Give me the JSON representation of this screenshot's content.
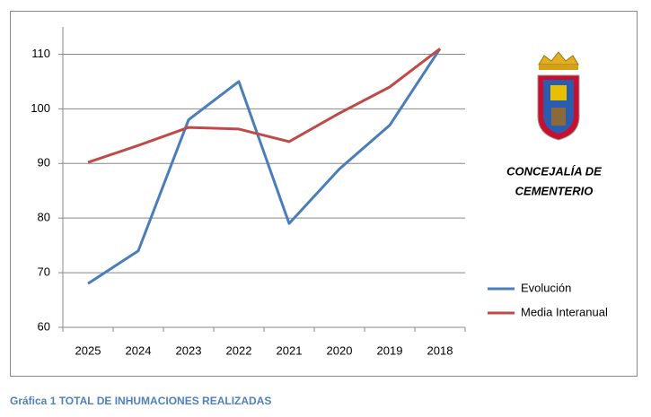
{
  "chart_data": {
    "type": "line",
    "categories": [
      "2025",
      "2024",
      "2023",
      "2022",
      "2021",
      "2020",
      "2019",
      "2018"
    ],
    "series": [
      {
        "name": "Evolución",
        "color": "#4a7ebb",
        "values": [
          68,
          74,
          98,
          105,
          79,
          89,
          97,
          111
        ]
      },
      {
        "name": "Media Interanual",
        "color": "#be4b48",
        "values": [
          90.2,
          93.3,
          96.6,
          96.3,
          94,
          99.2,
          104,
          111
        ]
      }
    ],
    "ylim": [
      60,
      115
    ],
    "yticks": [
      60,
      70,
      80,
      90,
      100,
      110
    ],
    "grid": true,
    "annotation": [
      "CONCEJALÍA DE",
      "CEMENTERIO"
    ],
    "caption": "Gráfica 1 TOTAL DE INHUMACIONES REALIZADAS"
  }
}
